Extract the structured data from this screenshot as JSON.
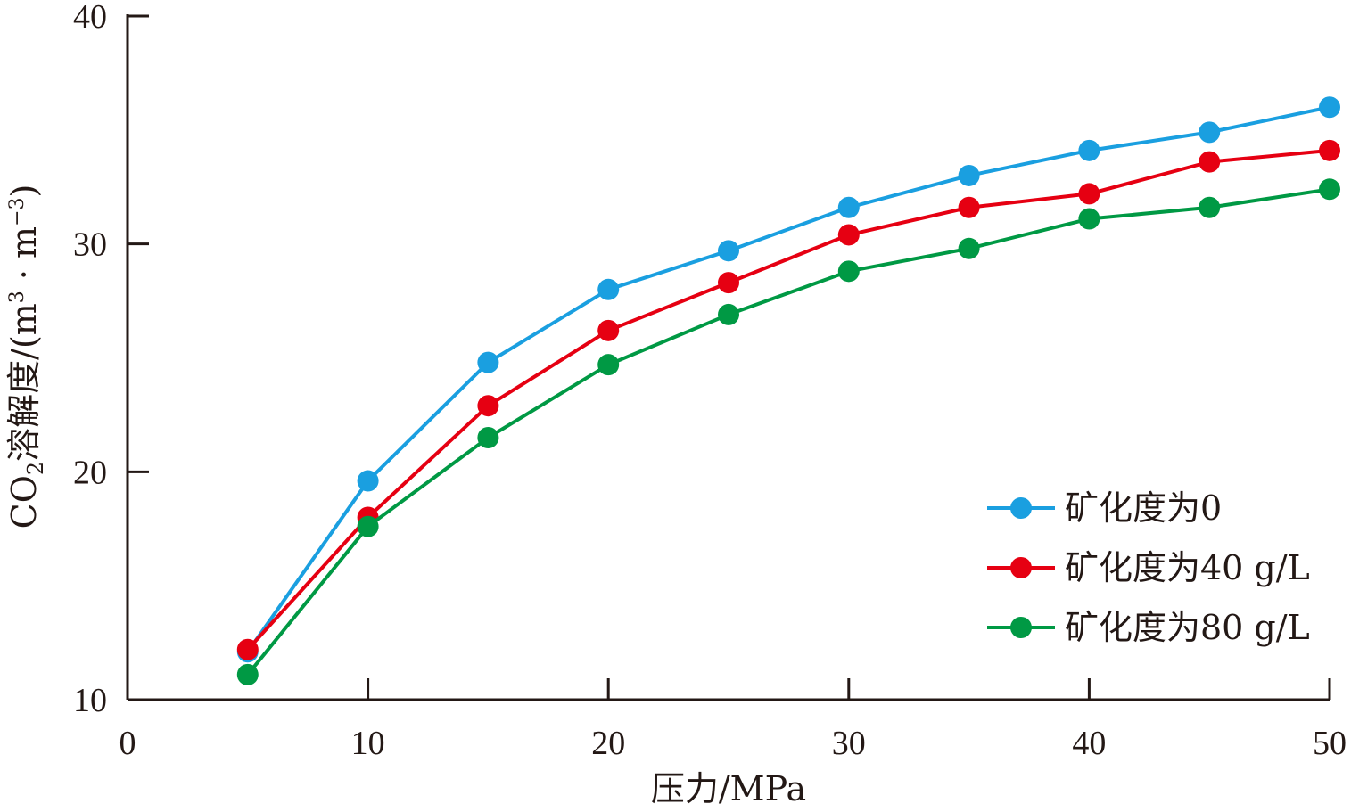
{
  "chart_data": {
    "type": "line",
    "title": "",
    "xlabel": "压力/MPa",
    "ylabel": {
      "prefix": "CO",
      "sub": "2",
      "middle": "溶解度/(m",
      "sup1": "3",
      "dot": " · m",
      "sup2": "−3",
      "suffix": ")"
    },
    "xlim": [
      0,
      50
    ],
    "ylim": [
      10,
      40
    ],
    "xticks": [
      0,
      10,
      20,
      30,
      40,
      50
    ],
    "yticks": [
      10,
      20,
      30,
      40
    ],
    "xtick_labels": [
      "0",
      "10",
      "20",
      "30",
      "40",
      "50"
    ],
    "ytick_labels": [
      "10",
      "20",
      "30",
      "40"
    ],
    "grid": false,
    "legend_position": "bottom-right",
    "x": [
      5,
      10,
      15,
      20,
      25,
      30,
      35,
      40,
      45,
      50
    ],
    "series": [
      {
        "name": "矿化度为0",
        "color": "#1a9fe0",
        "values": [
          12.1,
          19.6,
          24.8,
          28.0,
          29.7,
          31.6,
          33.0,
          34.1,
          34.9,
          36.0
        ]
      },
      {
        "name": "矿化度为40 g/L",
        "color": "#e60012",
        "values": [
          12.2,
          18.0,
          22.9,
          26.2,
          28.3,
          30.4,
          31.6,
          32.2,
          33.6,
          34.1
        ]
      },
      {
        "name": "矿化度为80 g/L",
        "color": "#009944",
        "values": [
          11.1,
          17.6,
          21.5,
          24.7,
          26.9,
          28.8,
          29.8,
          31.1,
          31.6,
          32.4
        ]
      }
    ]
  }
}
